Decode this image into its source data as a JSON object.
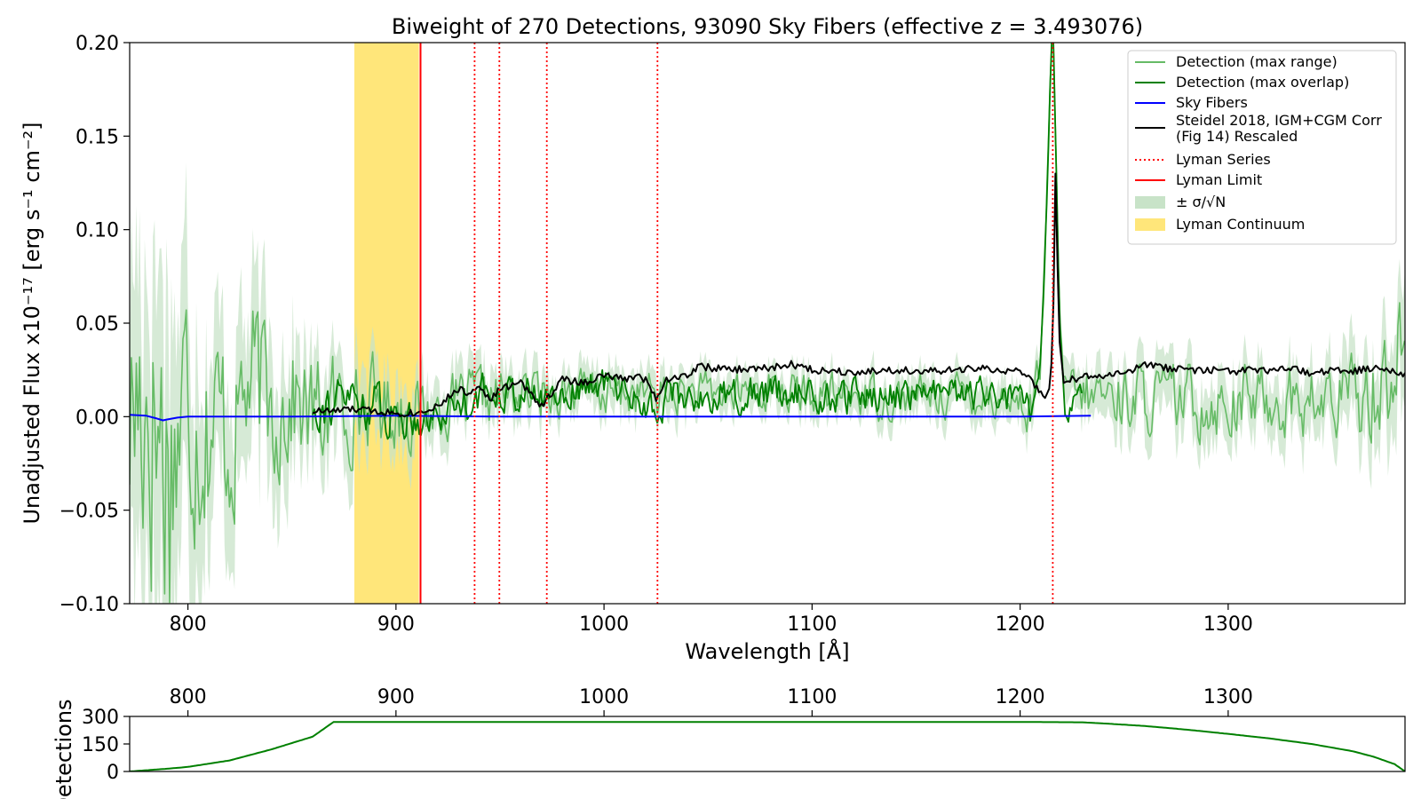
{
  "chart_data": [
    {
      "type": "line",
      "title": "Biweight of 270 Detections, 93090 Sky Fibers (effective z = 3.493076)",
      "xlabel": "Wavelength [Å]",
      "ylabel": "Unadjusted Flux x10⁻¹⁷ [erg s⁻¹ cm⁻²]",
      "xlim": [
        772,
        1385
      ],
      "ylim": [
        -0.1,
        0.2
      ],
      "x_ticks": [
        800,
        900,
        1000,
        1100,
        1200,
        1300
      ],
      "y_ticks": [
        -0.1,
        -0.05,
        0.0,
        0.05,
        0.1,
        0.15,
        0.2
      ],
      "y_tick_labels": [
        "−0.10",
        "−0.05",
        "0.00",
        "0.05",
        "0.10",
        "0.15",
        "0.20"
      ],
      "legend_position": "top-right",
      "lyman_series_lines": [
        937.8,
        949.7,
        972.5,
        1025.7,
        1215.7
      ],
      "lyman_limit": 911.8,
      "lyman_continuum_band": [
        880,
        911
      ],
      "colors": {
        "max_range": "#66bb66",
        "max_overlap": "#008000",
        "sky": "#0000ff",
        "steidel": "#000000",
        "lyman_series": "#ff0000",
        "lyman_limit": "#ff0000",
        "sigma_band": "#c8e3c8",
        "continuum": "#ffe67a"
      },
      "legend": [
        {
          "label": "Detection (max range)",
          "kind": "line",
          "color": "#66bb66",
          "style": "solid"
        },
        {
          "label": "Detection (max overlap)",
          "kind": "line",
          "color": "#008000",
          "style": "solid"
        },
        {
          "label": "Sky Fibers",
          "kind": "line",
          "color": "#0000ff",
          "style": "solid"
        },
        {
          "label": "Steidel 2018, IGM+CGM Corr\n(Fig 14) Rescaled",
          "kind": "line",
          "color": "#000000",
          "style": "solid"
        },
        {
          "label": "Lyman Series",
          "kind": "line",
          "color": "#ff0000",
          "style": "dotted"
        },
        {
          "label": "Lyman Limit",
          "kind": "line",
          "color": "#ff0000",
          "style": "solid"
        },
        {
          "label": "± σ/√N",
          "kind": "patch",
          "color": "#c8e3c8"
        },
        {
          "label": "Lyman Continuum",
          "kind": "patch",
          "color": "#ffe67a"
        }
      ],
      "series": [
        {
          "name": "Detection (max range)",
          "x": [
            772,
            780,
            790,
            800,
            810,
            820,
            830,
            840,
            850,
            860,
            870,
            880,
            890,
            900,
            910,
            920,
            940,
            960,
            980,
            1000,
            1020,
            1040,
            1060,
            1080,
            1100,
            1120,
            1140,
            1160,
            1180,
            1200,
            1205,
            1210,
            1213,
            1215,
            1216,
            1217,
            1219,
            1222,
            1226,
            1230,
            1240,
            1260,
            1280,
            1300,
            1320,
            1340,
            1360,
            1375,
            1385
          ],
          "y": [
            0.0,
            0.02,
            -0.02,
            0.01,
            0.0,
            -0.01,
            0.02,
            0.005,
            0.01,
            0.0,
            0.005,
            0.006,
            0.008,
            0.004,
            0.002,
            0.004,
            0.01,
            0.012,
            0.014,
            0.013,
            0.012,
            0.012,
            0.012,
            0.015,
            0.01,
            0.012,
            0.01,
            0.012,
            0.012,
            0.008,
            0.002,
            0.03,
            0.12,
            0.2,
            0.2,
            0.15,
            0.05,
            0.01,
            0.012,
            0.01,
            0.012,
            0.01,
            0.008,
            0.008,
            0.01,
            0.006,
            0.01,
            0.02,
            0.04
          ],
          "noise_amplitude": [
            0.08,
            0.1,
            0.1,
            0.07,
            0.06,
            0.05,
            0.045,
            0.04,
            0.035,
            0.03,
            0.028,
            0.025,
            0.022,
            0.02,
            0.018,
            0.016,
            0.015,
            0.013,
            0.012,
            0.012,
            0.012,
            0.011,
            0.011,
            0.011,
            0.011,
            0.011,
            0.011,
            0.011,
            0.011,
            0.011,
            0.011,
            0.01,
            0.01,
            0.0,
            0.0,
            0.0,
            0.01,
            0.012,
            0.013,
            0.014,
            0.016,
            0.017,
            0.018,
            0.018,
            0.018,
            0.019,
            0.022,
            0.03,
            0.035
          ]
        },
        {
          "name": "Detection (max overlap)",
          "x": [
            860,
            880,
            900,
            910,
            920,
            930,
            940,
            950,
            960,
            970,
            980,
            1000,
            1020,
            1025,
            1030,
            1050,
            1070,
            1090,
            1110,
            1130,
            1150,
            1170,
            1190,
            1200,
            1205,
            1210,
            1213,
            1215,
            1216,
            1217,
            1219,
            1222,
            1226,
            1230
          ],
          "y": [
            0.005,
            0.01,
            0.0,
            0.0,
            0.0,
            0.008,
            0.012,
            0.014,
            0.012,
            0.01,
            0.013,
            0.018,
            0.008,
            0.0,
            0.012,
            0.01,
            0.012,
            0.014,
            0.008,
            0.012,
            0.012,
            0.012,
            0.01,
            0.008,
            0.002,
            0.03,
            0.12,
            0.2,
            0.2,
            0.15,
            0.05,
            0.0,
            0.01,
            0.012
          ],
          "noise_amplitude": [
            0.01,
            0.014,
            0.012,
            0.01,
            0.01,
            0.01,
            0.01,
            0.009,
            0.009,
            0.009,
            0.009,
            0.009,
            0.009,
            0.009,
            0.009,
            0.009,
            0.009,
            0.009,
            0.009,
            0.009,
            0.009,
            0.009,
            0.009,
            0.009,
            0.008,
            0.006,
            0.0,
            0.0,
            0.0,
            0.0,
            0.0,
            0.006,
            0.006,
            0.006
          ]
        },
        {
          "name": "Sky Fibers",
          "x": [
            772,
            780,
            785,
            788,
            790,
            795,
            800,
            850,
            900,
            950,
            1000,
            1050,
            1100,
            1150,
            1200,
            1234
          ],
          "y": [
            0.001,
            0.0005,
            -0.001,
            -0.002,
            -0.0015,
            -0.0005,
            0.0,
            0.0,
            0.0005,
            0.0,
            0.0,
            0.0,
            0.0,
            0.0,
            0.0,
            0.0005
          ]
        },
        {
          "name": "Steidel 2018, IGM+CGM Corr (Fig 14) Rescaled",
          "x": [
            860,
            870,
            880,
            890,
            900,
            910,
            915,
            920,
            925,
            930,
            935,
            940,
            945,
            950,
            960,
            970,
            980,
            990,
            1000,
            1010,
            1015,
            1020,
            1025,
            1030,
            1040,
            1045,
            1060,
            1080,
            1090,
            1100,
            1120,
            1140,
            1160,
            1180,
            1190,
            1200,
            1205,
            1208,
            1210,
            1212,
            1214,
            1215,
            1216,
            1217,
            1218,
            1219,
            1221,
            1224,
            1230,
            1240,
            1250,
            1260,
            1270,
            1280,
            1290,
            1300,
            1310,
            1320,
            1330,
            1340,
            1350,
            1360,
            1370,
            1380,
            1385
          ],
          "y": [
            0.003,
            0.003,
            0.004,
            0.003,
            0.002,
            0.002,
            0.004,
            0.006,
            0.01,
            0.015,
            0.012,
            0.018,
            0.008,
            0.015,
            0.018,
            0.006,
            0.02,
            0.018,
            0.022,
            0.02,
            0.022,
            0.02,
            0.01,
            0.02,
            0.022,
            0.027,
            0.025,
            0.026,
            0.028,
            0.025,
            0.024,
            0.025,
            0.024,
            0.026,
            0.024,
            0.025,
            0.02,
            0.015,
            0.012,
            0.01,
            0.015,
            0.028,
            0.06,
            0.13,
            0.08,
            0.04,
            0.018,
            0.02,
            0.021,
            0.022,
            0.023,
            0.028,
            0.026,
            0.025,
            0.025,
            0.024,
            0.025,
            0.024,
            0.026,
            0.023,
            0.025,
            0.024,
            0.026,
            0.025,
            0.023
          ]
        }
      ]
    },
    {
      "type": "line",
      "ylabel": "Detections",
      "xlim": [
        772,
        1385
      ],
      "ylim": [
        0,
        300
      ],
      "x_ticks": [
        800,
        900,
        1000,
        1100,
        1200,
        1300
      ],
      "y_ticks": [
        0,
        150,
        300
      ],
      "series": [
        {
          "name": "Detections",
          "color": "#008000",
          "x": [
            772,
            790,
            800,
            820,
            840,
            860,
            870,
            880,
            900,
            1000,
            1100,
            1200,
            1230,
            1240,
            1260,
            1280,
            1300,
            1320,
            1340,
            1360,
            1370,
            1380,
            1385
          ],
          "y": [
            0,
            15,
            25,
            60,
            120,
            190,
            270,
            270,
            270,
            270,
            270,
            270,
            268,
            262,
            248,
            228,
            205,
            180,
            150,
            110,
            80,
            40,
            0
          ]
        }
      ]
    }
  ]
}
